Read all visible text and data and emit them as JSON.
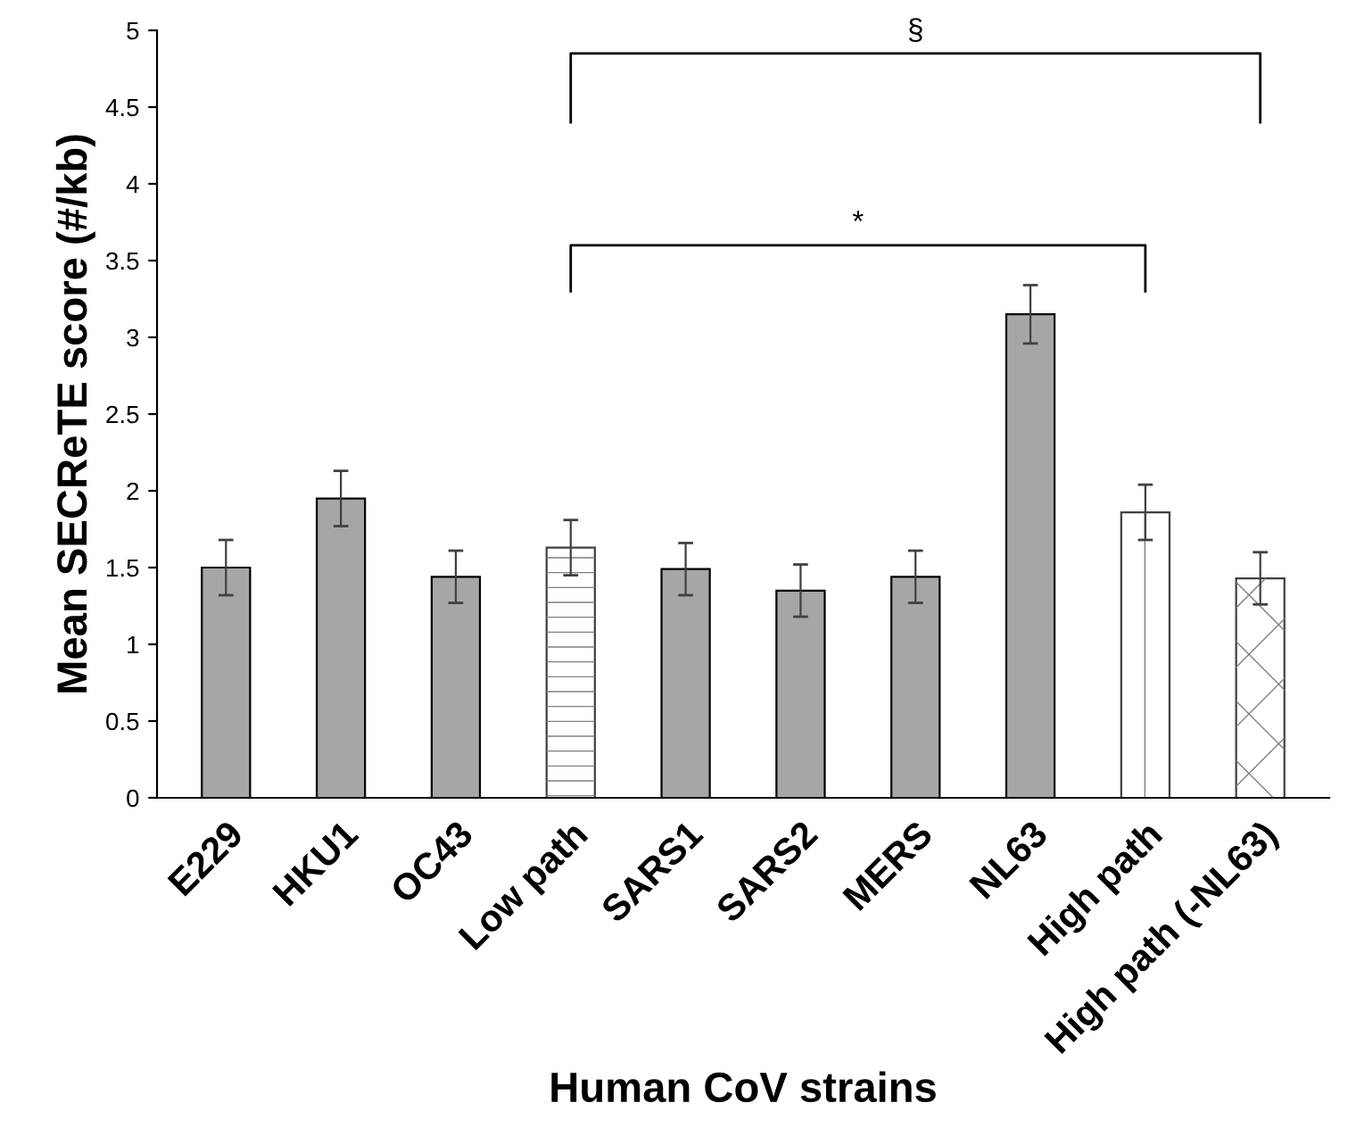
{
  "chart_data": {
    "type": "bar",
    "xlabel": "Human CoV strains",
    "ylabel": "Mean SECReTE score (#/kb)",
    "categories": [
      "E229",
      "HKU1",
      "OC43",
      "Low path",
      "SARS1",
      "SARS2",
      "MERS",
      "NL63",
      "High path",
      "High path (-NL63)"
    ],
    "values": [
      1.5,
      1.95,
      1.44,
      1.63,
      1.49,
      1.35,
      1.44,
      3.15,
      1.86,
      1.43
    ],
    "errors": [
      0.18,
      0.18,
      0.17,
      0.18,
      0.17,
      0.17,
      0.17,
      0.19,
      0.18,
      0.17
    ],
    "colors": [
      "#a6a6a6",
      "#a6a6a6",
      "#a6a6a6",
      "#ffffff",
      "#a6a6a6",
      "#a6a6a6",
      "#a6a6a6",
      "#a6a6a6",
      "#ffffff",
      "#ffffff"
    ],
    "ylim": [
      0,
      5
    ],
    "yticks": [
      0,
      0.5,
      1,
      1.5,
      2,
      2.5,
      3,
      3.5,
      4,
      4.5,
      5
    ],
    "grid": false,
    "annotations": [
      "§",
      "*"
    ]
  }
}
